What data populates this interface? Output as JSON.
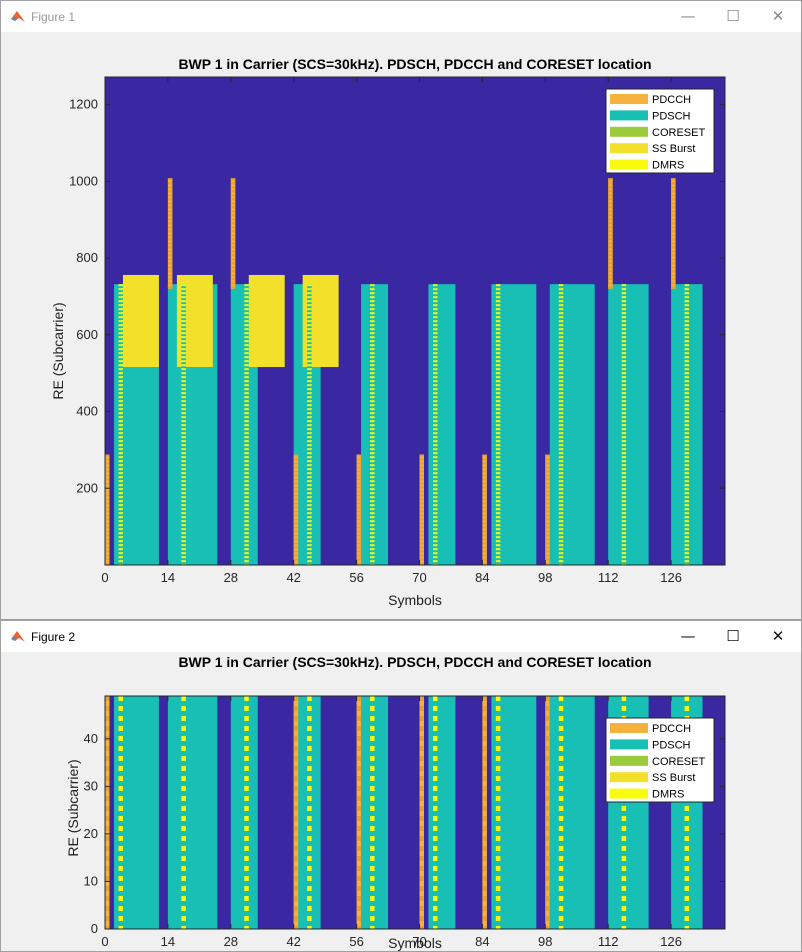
{
  "windows": [
    {
      "title": "Figure 1",
      "controls": {
        "minimize": "—",
        "maximize": "☐",
        "close": "✕"
      }
    },
    {
      "title": "Figure 2",
      "controls": {
        "minimize": "—",
        "maximize": "☐",
        "close": "✕"
      }
    }
  ],
  "colors": {
    "background": "#3a27a2",
    "PDCCH": "#f7b23d",
    "PDSCH": "#17bfb5",
    "CORESET": "#9bca3c",
    "SSBurst": "#f2e02b",
    "DMRS": "#f9fb0e"
  },
  "chart_data": [
    {
      "type": "heatmap",
      "title": "BWP 1 in Carrier (SCS=30kHz). PDSCH, PDCCH and CORESET location",
      "xlabel": "Symbols",
      "ylabel": "RE (Subcarrier)",
      "xlim": [
        0,
        138
      ],
      "ylim": [
        0,
        1272
      ],
      "xticks": [
        0,
        14,
        28,
        42,
        56,
        70,
        84,
        98,
        112,
        126
      ],
      "yticks": [
        200,
        400,
        600,
        800,
        1000,
        1200
      ],
      "legend": {
        "position": "top-right",
        "entries": [
          "PDCCH",
          "PDSCH",
          "CORESET",
          "SS Burst",
          "DMRS"
        ]
      },
      "regions": [
        {
          "type": "PDSCH",
          "x": [
            2,
            12
          ],
          "y": [
            0,
            732
          ]
        },
        {
          "type": "PDSCH",
          "x": [
            14,
            25
          ],
          "y": [
            0,
            732
          ]
        },
        {
          "type": "PDSCH",
          "x": [
            28,
            34
          ],
          "y": [
            0,
            732
          ]
        },
        {
          "type": "PDSCH",
          "x": [
            42,
            48
          ],
          "y": [
            0,
            732
          ]
        },
        {
          "type": "PDSCH",
          "x": [
            57,
            63
          ],
          "y": [
            0,
            732
          ]
        },
        {
          "type": "PDSCH",
          "x": [
            72,
            78
          ],
          "y": [
            0,
            732
          ]
        },
        {
          "type": "PDSCH",
          "x": [
            86,
            96
          ],
          "y": [
            0,
            732
          ]
        },
        {
          "type": "PDSCH",
          "x": [
            99,
            109
          ],
          "y": [
            0,
            732
          ]
        },
        {
          "type": "PDSCH",
          "x": [
            112,
            121
          ],
          "y": [
            0,
            732
          ]
        },
        {
          "type": "PDSCH",
          "x": [
            126,
            133
          ],
          "y": [
            0,
            732
          ]
        },
        {
          "type": "SS Burst",
          "x": [
            4,
            12
          ],
          "y": [
            516,
            756
          ]
        },
        {
          "type": "SS Burst",
          "x": [
            16,
            24
          ],
          "y": [
            516,
            756
          ]
        },
        {
          "type": "SS Burst",
          "x": [
            32,
            40
          ],
          "y": [
            516,
            756
          ]
        },
        {
          "type": "SS Burst",
          "x": [
            44,
            52
          ],
          "y": [
            516,
            756
          ]
        },
        {
          "type": "PDCCH",
          "x": [
            0,
            1
          ],
          "y": [
            0,
            288
          ]
        },
        {
          "type": "PDCCH",
          "x": [
            14,
            15
          ],
          "y": [
            720,
            1008
          ]
        },
        {
          "type": "PDCCH",
          "x": [
            28,
            29
          ],
          "y": [
            720,
            1008
          ]
        },
        {
          "type": "PDCCH",
          "x": [
            42,
            43
          ],
          "y": [
            0,
            288
          ]
        },
        {
          "type": "PDCCH",
          "x": [
            56,
            57
          ],
          "y": [
            0,
            288
          ]
        },
        {
          "type": "PDCCH",
          "x": [
            70,
            71
          ],
          "y": [
            0,
            288
          ]
        },
        {
          "type": "PDCCH",
          "x": [
            84,
            85
          ],
          "y": [
            0,
            288
          ]
        },
        {
          "type": "PDCCH",
          "x": [
            98,
            99
          ],
          "y": [
            0,
            288
          ]
        },
        {
          "type": "PDCCH",
          "x": [
            112,
            113
          ],
          "y": [
            720,
            1008
          ]
        },
        {
          "type": "PDCCH",
          "x": [
            126,
            127
          ],
          "y": [
            720,
            1008
          ]
        },
        {
          "type": "DMRS",
          "x": [
            3,
            4
          ],
          "y": [
            0,
            732
          ]
        },
        {
          "type": "DMRS",
          "x": [
            17,
            18
          ],
          "y": [
            0,
            732
          ]
        },
        {
          "type": "DMRS",
          "x": [
            31,
            32
          ],
          "y": [
            0,
            732
          ]
        },
        {
          "type": "DMRS",
          "x": [
            45,
            46
          ],
          "y": [
            0,
            732
          ]
        },
        {
          "type": "DMRS",
          "x": [
            59,
            60
          ],
          "y": [
            0,
            732
          ]
        },
        {
          "type": "DMRS",
          "x": [
            73,
            74
          ],
          "y": [
            0,
            732
          ]
        },
        {
          "type": "DMRS",
          "x": [
            87,
            88
          ],
          "y": [
            0,
            732
          ]
        },
        {
          "type": "DMRS",
          "x": [
            101,
            102
          ],
          "y": [
            0,
            732
          ]
        },
        {
          "type": "DMRS",
          "x": [
            115,
            116
          ],
          "y": [
            0,
            732
          ]
        },
        {
          "type": "DMRS",
          "x": [
            129,
            130
          ],
          "y": [
            0,
            732
          ]
        }
      ]
    },
    {
      "type": "heatmap",
      "title": "BWP 1 in Carrier (SCS=30kHz). PDSCH, PDCCH and CORESET location",
      "xlabel": "Symbols",
      "ylabel": "RE (Subcarrier)",
      "xlim": [
        0,
        138
      ],
      "ylim": [
        0,
        49
      ],
      "xticks": [
        0,
        14,
        28,
        42,
        56,
        70,
        84,
        98,
        112,
        126
      ],
      "yticks": [
        0,
        10,
        20,
        30,
        40
      ],
      "legend": {
        "position": "top-right",
        "entries": [
          "PDCCH",
          "PDSCH",
          "CORESET",
          "SS Burst",
          "DMRS"
        ]
      },
      "regions": [
        {
          "type": "PDSCH",
          "x": [
            2,
            12
          ],
          "y": [
            0,
            49
          ]
        },
        {
          "type": "PDSCH",
          "x": [
            14,
            25
          ],
          "y": [
            0,
            49
          ]
        },
        {
          "type": "PDSCH",
          "x": [
            28,
            34
          ],
          "y": [
            0,
            49
          ]
        },
        {
          "type": "PDSCH",
          "x": [
            42,
            48
          ],
          "y": [
            0,
            49
          ]
        },
        {
          "type": "PDSCH",
          "x": [
            57,
            63
          ],
          "y": [
            0,
            49
          ]
        },
        {
          "type": "PDSCH",
          "x": [
            72,
            78
          ],
          "y": [
            0,
            49
          ]
        },
        {
          "type": "PDSCH",
          "x": [
            86,
            96
          ],
          "y": [
            0,
            49
          ]
        },
        {
          "type": "PDSCH",
          "x": [
            99,
            109
          ],
          "y": [
            0,
            49
          ]
        },
        {
          "type": "PDSCH",
          "x": [
            112,
            121
          ],
          "y": [
            0,
            49
          ]
        },
        {
          "type": "PDSCH",
          "x": [
            126,
            133
          ],
          "y": [
            0,
            49
          ]
        },
        {
          "type": "PDCCH",
          "x": [
            0,
            1
          ],
          "y": [
            0,
            49
          ]
        },
        {
          "type": "PDCCH",
          "x": [
            42,
            43
          ],
          "y": [
            0,
            49
          ]
        },
        {
          "type": "PDCCH",
          "x": [
            56,
            57
          ],
          "y": [
            0,
            49
          ]
        },
        {
          "type": "PDCCH",
          "x": [
            70,
            71
          ],
          "y": [
            0,
            49
          ]
        },
        {
          "type": "PDCCH",
          "x": [
            84,
            85
          ],
          "y": [
            0,
            49
          ]
        },
        {
          "type": "PDCCH",
          "x": [
            98,
            99
          ],
          "y": [
            0,
            49
          ]
        },
        {
          "type": "DMRS",
          "x": [
            3,
            4
          ],
          "y": [
            0,
            49
          ]
        },
        {
          "type": "DMRS",
          "x": [
            17,
            18
          ],
          "y": [
            0,
            49
          ]
        },
        {
          "type": "DMRS",
          "x": [
            31,
            32
          ],
          "y": [
            0,
            49
          ]
        },
        {
          "type": "DMRS",
          "x": [
            45,
            46
          ],
          "y": [
            0,
            49
          ]
        },
        {
          "type": "DMRS",
          "x": [
            59,
            60
          ],
          "y": [
            0,
            49
          ]
        },
        {
          "type": "DMRS",
          "x": [
            73,
            74
          ],
          "y": [
            0,
            49
          ]
        },
        {
          "type": "DMRS",
          "x": [
            87,
            88
          ],
          "y": [
            0,
            49
          ]
        },
        {
          "type": "DMRS",
          "x": [
            101,
            102
          ],
          "y": [
            0,
            49
          ]
        },
        {
          "type": "DMRS",
          "x": [
            115,
            116
          ],
          "y": [
            0,
            49
          ]
        },
        {
          "type": "DMRS",
          "x": [
            129,
            130
          ],
          "y": [
            0,
            49
          ]
        }
      ]
    }
  ]
}
